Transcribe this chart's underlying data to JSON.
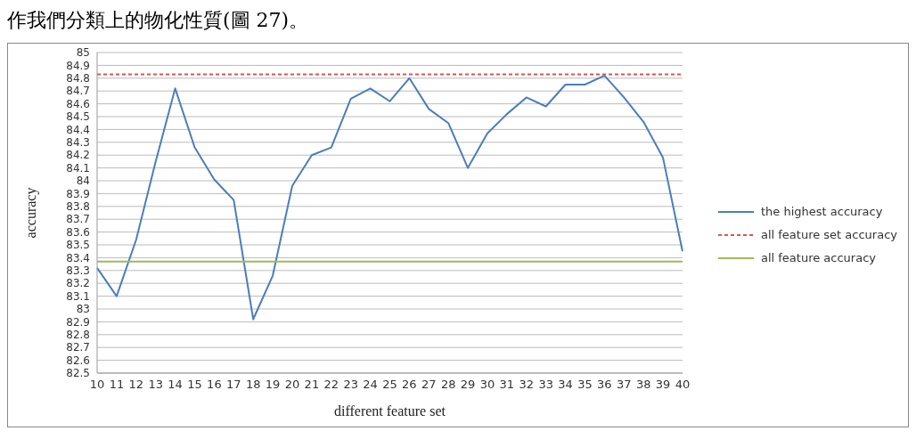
{
  "chart_data": {
    "type": "line",
    "xlabel": "different feature set",
    "ylabel": "accuracy",
    "annotations": [
      "作我們分類上的物化性質(圖 27)。"
    ],
    "categories": [
      "10",
      "11",
      "12",
      "13",
      "14",
      "15",
      "16",
      "17",
      "18",
      "19",
      "20",
      "21",
      "22",
      "23",
      "24",
      "25",
      "26",
      "27",
      "28",
      "29",
      "30",
      "31",
      "32",
      "33",
      "34",
      "35",
      "36",
      "37",
      "38",
      "39",
      "40"
    ],
    "series": [
      {
        "name": "the highest accuracy",
        "color": "#4a7ebb",
        "line_style": "solid",
        "values": [
          83.32,
          83.1,
          83.54,
          84.15,
          84.72,
          84.26,
          84.01,
          83.85,
          82.92,
          83.26,
          83.96,
          84.2,
          84.26,
          84.64,
          84.72,
          84.62,
          84.8,
          84.56,
          84.45,
          84.1,
          84.37,
          84.52,
          84.65,
          84.58,
          84.75,
          84.75,
          84.82,
          84.65,
          84.46,
          84.18,
          83.45
        ]
      },
      {
        "name": "all feature set accuracy",
        "color": "#e0524f",
        "line_style": "dashed",
        "values": [
          84.83,
          84.83,
          84.83,
          84.83,
          84.83,
          84.83,
          84.83,
          84.83,
          84.83,
          84.83,
          84.83,
          84.83,
          84.83,
          84.83,
          84.83,
          84.83,
          84.83,
          84.83,
          84.83,
          84.83,
          84.83,
          84.83,
          84.83,
          84.83,
          84.83,
          84.83,
          84.83,
          84.83,
          84.83,
          84.83,
          84.83
        ]
      },
      {
        "name": "all feature accuracy",
        "color": "#9bbb59",
        "line_style": "solid",
        "values": [
          83.37,
          83.37,
          83.37,
          83.37,
          83.37,
          83.37,
          83.37,
          83.37,
          83.37,
          83.37,
          83.37,
          83.37,
          83.37,
          83.37,
          83.37,
          83.37,
          83.37,
          83.37,
          83.37,
          83.37,
          83.37,
          83.37,
          83.37,
          83.37,
          83.37,
          83.37,
          83.37,
          83.37,
          83.37,
          83.37,
          83.37
        ]
      }
    ],
    "ylim": [
      82.5,
      85
    ],
    "yticks": [
      82.5,
      82.6,
      82.7,
      82.8,
      82.9,
      83,
      83.1,
      83.2,
      83.3,
      83.4,
      83.5,
      83.6,
      83.7,
      83.8,
      83.9,
      84,
      84.1,
      84.2,
      84.3,
      84.4,
      84.5,
      84.6,
      84.7,
      84.8,
      84.9,
      85
    ],
    "grid": "y",
    "legend": "right",
    "marker": "none"
  }
}
